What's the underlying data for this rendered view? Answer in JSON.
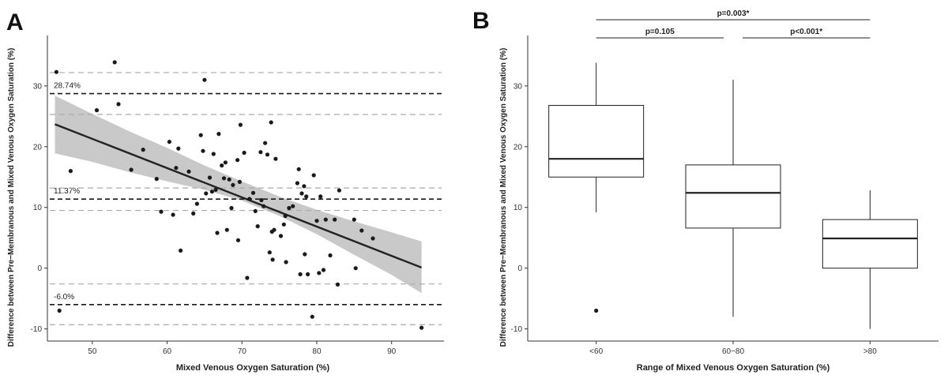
{
  "chart_data": [
    {
      "panel": "A",
      "type": "scatter",
      "xlabel": "Mixed Venous Oxygen Saturation (%)",
      "ylabel": "Difference between Pre−Membranous and Mixed Venous Oxygen Saturation (%)",
      "xlim": [
        44,
        97
      ],
      "ylim": [
        -12,
        37
      ],
      "xticks": [
        50,
        60,
        70,
        80,
        90
      ],
      "yticks": [
        -10,
        0,
        10,
        20,
        30
      ],
      "grid": false,
      "points": [
        [
          45.2,
          32.3
        ],
        [
          45.6,
          -7.0
        ],
        [
          47.1,
          16.0
        ],
        [
          50.6,
          26.0
        ],
        [
          53.0,
          33.9
        ],
        [
          53.5,
          27.0
        ],
        [
          55.2,
          16.2
        ],
        [
          56.8,
          19.5
        ],
        [
          58.6,
          14.7
        ],
        [
          59.2,
          9.3
        ],
        [
          60.3,
          20.8
        ],
        [
          60.8,
          8.8
        ],
        [
          61.2,
          16.5
        ],
        [
          61.5,
          19.7
        ],
        [
          61.8,
          2.9
        ],
        [
          62.9,
          15.9
        ],
        [
          63.5,
          9.0
        ],
        [
          64.0,
          10.6
        ],
        [
          64.5,
          21.9
        ],
        [
          64.8,
          19.3
        ],
        [
          65.0,
          31.0
        ],
        [
          65.2,
          12.3
        ],
        [
          65.7,
          14.9
        ],
        [
          66.0,
          12.6
        ],
        [
          66.2,
          18.8
        ],
        [
          66.5,
          12.9
        ],
        [
          66.7,
          5.8
        ],
        [
          66.9,
          22.1
        ],
        [
          67.3,
          16.9
        ],
        [
          67.6,
          14.8
        ],
        [
          67.8,
          17.4
        ],
        [
          68.0,
          6.3
        ],
        [
          68.3,
          14.6
        ],
        [
          68.6,
          9.9
        ],
        [
          68.8,
          13.7
        ],
        [
          69.4,
          17.8
        ],
        [
          69.5,
          4.6
        ],
        [
          69.7,
          14.2
        ],
        [
          69.8,
          23.6
        ],
        [
          70.3,
          19.0
        ],
        [
          70.7,
          -1.6
        ],
        [
          71.0,
          11.4
        ],
        [
          71.5,
          12.4
        ],
        [
          71.8,
          9.4
        ],
        [
          72.1,
          6.9
        ],
        [
          72.5,
          19.1
        ],
        [
          72.6,
          11.2
        ],
        [
          72.9,
          10.2
        ],
        [
          73.1,
          20.6
        ],
        [
          73.4,
          18.7
        ],
        [
          73.7,
          2.6
        ],
        [
          73.9,
          24.0
        ],
        [
          74.0,
          6.0
        ],
        [
          74.1,
          1.4
        ],
        [
          74.3,
          6.3
        ],
        [
          74.5,
          18.0
        ],
        [
          75.2,
          5.3
        ],
        [
          75.6,
          7.2
        ],
        [
          75.8,
          8.6
        ],
        [
          75.9,
          1.0
        ],
        [
          76.3,
          9.9
        ],
        [
          76.8,
          10.2
        ],
        [
          77.4,
          14.0
        ],
        [
          77.6,
          16.3
        ],
        [
          77.8,
          -1.0
        ],
        [
          78.0,
          12.3
        ],
        [
          78.3,
          13.5
        ],
        [
          78.4,
          2.3
        ],
        [
          78.6,
          11.8
        ],
        [
          78.8,
          -1.0
        ],
        [
          79.4,
          -8.0
        ],
        [
          79.6,
          15.3
        ],
        [
          80.0,
          7.8
        ],
        [
          80.3,
          -0.8
        ],
        [
          80.5,
          11.8
        ],
        [
          80.9,
          -0.3
        ],
        [
          81.2,
          8.0
        ],
        [
          81.8,
          2.1
        ],
        [
          82.4,
          8.0
        ],
        [
          82.8,
          -2.7
        ],
        [
          83.0,
          12.8
        ],
        [
          85.0,
          8.0
        ],
        [
          85.2,
          0.0
        ],
        [
          86.0,
          6.2
        ],
        [
          87.5,
          4.9
        ],
        [
          94.0,
          -9.8
        ]
      ],
      "regression": {
        "x": [
          45,
          94
        ],
        "y": [
          23.7,
          0.1
        ]
      },
      "confidence_band": {
        "x": [
          45,
          50,
          55,
          60,
          65,
          70,
          75,
          80,
          85,
          90,
          94
        ],
        "upper": [
          28.4,
          25.4,
          22.5,
          19.8,
          16.9,
          14.3,
          11.8,
          9.6,
          7.7,
          5.9,
          4.4
        ],
        "lower": [
          18.9,
          17.5,
          15.8,
          14.3,
          12.9,
          11.1,
          8.6,
          5.6,
          2.2,
          -1.1,
          -4.1
        ]
      },
      "hlines": [
        {
          "y": 28.74,
          "label": "28.74%",
          "style": "dark"
        },
        {
          "y": 11.37,
          "label": "11.37%",
          "style": "dark"
        },
        {
          "y": -6.0,
          "label": "-6.0%",
          "style": "dark"
        },
        {
          "y": 32.2,
          "label": "",
          "style": "light"
        },
        {
          "y": 25.3,
          "label": "",
          "style": "light"
        },
        {
          "y": 13.2,
          "label": "",
          "style": "light"
        },
        {
          "y": 9.5,
          "label": "",
          "style": "light"
        },
        {
          "y": -2.6,
          "label": "",
          "style": "light"
        },
        {
          "y": -9.3,
          "label": "",
          "style": "light"
        }
      ],
      "colors": {
        "point": "#1a1a1a",
        "line": "#222222",
        "band": "#c9c9c9",
        "dark_ref": "#1a1a1a",
        "light_ref": "#aaaaaa"
      }
    },
    {
      "panel": "B",
      "type": "box",
      "xlabel": "Range of Mixed Venous Oxygen Saturation (%)",
      "ylabel": "Difference between Pre−Membranous and Mixed Venous Oxygen Saturation (%)",
      "ylim": [
        -12,
        37
      ],
      "yticks": [
        -10,
        0,
        10,
        20,
        30
      ],
      "grid": false,
      "categories": [
        "<60",
        "60−80",
        ">80"
      ],
      "boxes": [
        {
          "whisker_low": 9.2,
          "q1": 15.0,
          "median": 18.0,
          "q3": 26.8,
          "whisker_high": 33.8,
          "outliers": [
            -7.0
          ]
        },
        {
          "whisker_low": -8.0,
          "q1": 6.6,
          "median": 12.4,
          "q3": 17.0,
          "whisker_high": 31.0,
          "outliers": []
        },
        {
          "whisker_low": -10.0,
          "q1": 0.0,
          "median": 4.9,
          "q3": 8.0,
          "whisker_high": 12.8,
          "outliers": []
        }
      ],
      "comparisons": [
        {
          "from": 0,
          "to": 2,
          "label": "p=0.003*"
        },
        {
          "from": 0,
          "to": 1,
          "label": "p=0.105"
        },
        {
          "from": 1,
          "to": 2,
          "label": "p<0.001*"
        }
      ]
    }
  ],
  "panel_letters": {
    "a": "A",
    "b": "B"
  }
}
